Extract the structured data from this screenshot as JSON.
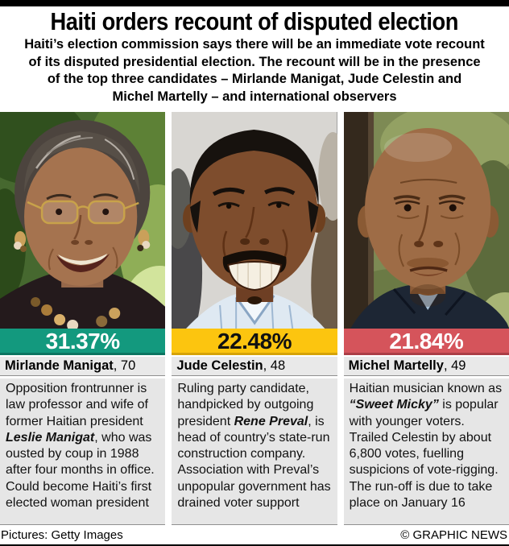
{
  "header": {
    "title": "Haiti orders recount of disputed election",
    "subtitle_lines": [
      "Haiti’s election commission says there will be an immediate vote recount",
      "of its disputed presidential election. The recount will be in the presence",
      "of the top three candidates – Mirlande Manigat, Jude Celestin and",
      "Michel Martelly – and international observers"
    ]
  },
  "chart_data": {
    "type": "bar",
    "categories": [
      "Mirlande Manigat",
      "Jude Celestin",
      "Michel Martelly"
    ],
    "values": [
      31.37,
      22.48,
      21.84
    ],
    "title": "Haiti presidential election first-round vote share (%)",
    "bar_colors": [
      "#13997e",
      "#fcc50f",
      "#d5545b"
    ]
  },
  "candidates": [
    {
      "name": "Mirlande Manigat",
      "age_suffix": ", 70",
      "percent": "31.37%",
      "bar_color": "#13997e",
      "bar_edge_color": "#0c7561",
      "percent_text_color": "#ffffff",
      "photo_label": "Mirlande Manigat portrait",
      "description": [
        {
          "text": "Opposition frontrunner is law professor and wife of former Haitian president "
        },
        {
          "text": "Leslie Manigat",
          "style": "bi"
        },
        {
          "text": ", who was ousted by coup in 1988 after four months in office. Could become Haiti’s first elected woman president"
        }
      ]
    },
    {
      "name": "Jude Celestin",
      "age_suffix": ", 48",
      "percent": "22.48%",
      "bar_color": "#fcc50f",
      "bar_edge_color": "#d6a307",
      "percent_text_color": "#111111",
      "photo_label": "Jude Celestin portrait",
      "description": [
        {
          "text": "Ruling party candidate, handpicked by outgoing president "
        },
        {
          "text": "Rene Preval",
          "style": "bi"
        },
        {
          "text": ", is head of country’s state-run construction company. Association with Preval’s unpopular government has drained voter support"
        }
      ]
    },
    {
      "name": "Michel Martelly",
      "age_suffix": ", 49",
      "percent": "21.84%",
      "bar_color": "#d5545b",
      "bar_edge_color": "#ab3e46",
      "percent_text_color": "#ffffff",
      "photo_label": "Michel Martelly portrait",
      "description": [
        {
          "text": "Haitian musician known as "
        },
        {
          "text": "“Sweet Micky”",
          "style": "bi"
        },
        {
          "text": " is popular with younger voters. Trailed Celestin by about 6,800 votes, fuelling suspicions of vote-rigging. The run-off is due to take place on January 16"
        }
      ]
    }
  ],
  "footer": {
    "credit": "Pictures: Getty Images",
    "source": "© GRAPHIC NEWS"
  }
}
